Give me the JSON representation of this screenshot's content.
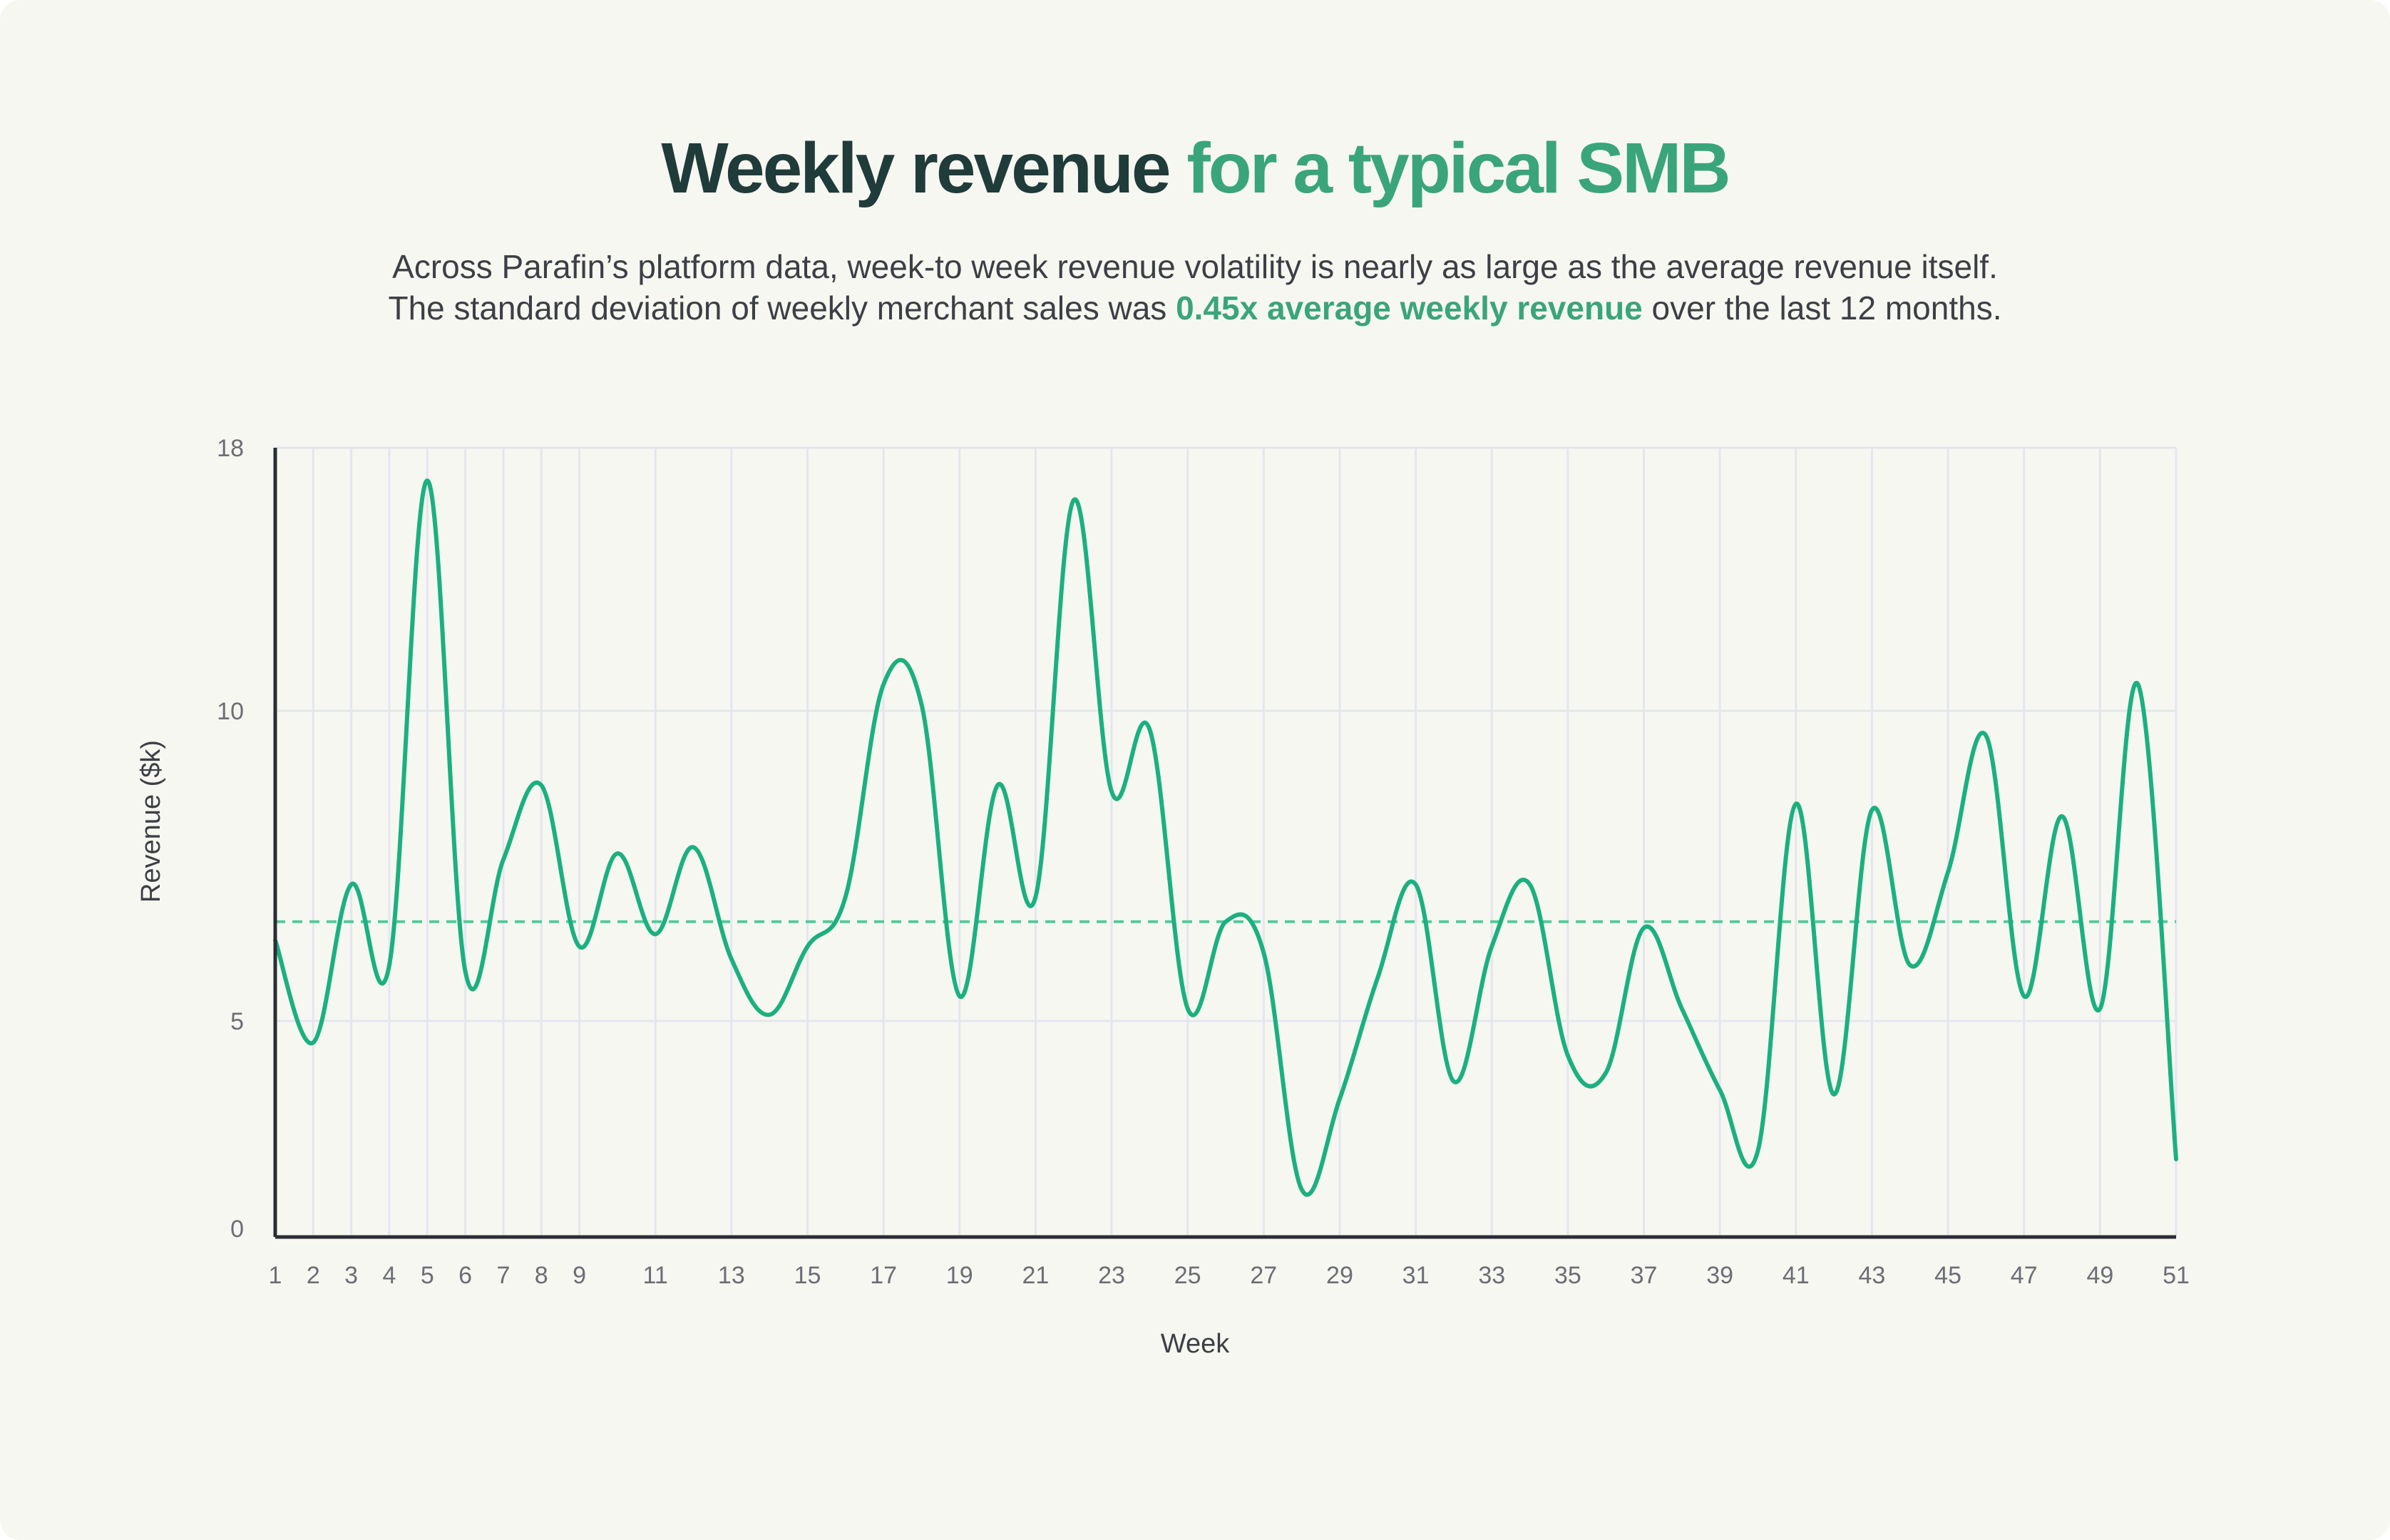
{
  "header": {
    "title_part1": "Weekly revenue",
    "title_part2": "for a typical SMB",
    "subtitle_line1": "Across Parafin’s platform data, week-to week revenue volatility is nearly as large as the average revenue itself.",
    "subtitle_line2_prefix": "The standard deviation of weekly merchant sales was ",
    "subtitle_line2_highlight": "0.45x average weekly revenue",
    "subtitle_line2_suffix": " over the last 12 months."
  },
  "colors": {
    "line": "#1bb07f",
    "average": "#55c99a",
    "grid": "#e4e6ee",
    "axis": "#2a2d34",
    "title_dark": "#1f3b3a",
    "title_green": "#3aa57a"
  },
  "chart_data": {
    "type": "line",
    "title": "Weekly revenue for a typical SMB",
    "xlabel": "Week",
    "ylabel": "Revenue ($k)",
    "y_ticks": [
      0,
      5,
      10,
      18
    ],
    "x_ticks": [
      1,
      2,
      3,
      4,
      5,
      6,
      7,
      8,
      9,
      11,
      13,
      15,
      17,
      19,
      21,
      23,
      25,
      27,
      29,
      31,
      33,
      35,
      37,
      39,
      41,
      43,
      45,
      47,
      49,
      51
    ],
    "xlim": [
      1,
      51
    ],
    "grid": true,
    "average_line": 6.6,
    "series": [
      {
        "name": "Weekly revenue",
        "x": [
          1,
          2,
          3,
          4,
          5,
          6,
          7,
          8,
          9,
          10,
          11,
          12,
          13,
          14,
          15,
          16,
          17,
          18,
          19,
          20,
          21,
          22,
          23,
          24,
          25,
          26,
          27,
          28,
          29,
          30,
          31,
          32,
          33,
          34,
          35,
          36,
          37,
          38,
          39,
          40,
          41,
          42,
          43,
          44,
          45,
          46,
          47,
          48,
          49,
          50,
          51
        ],
        "values": [
          6.3,
          4.5,
          7.2,
          5.9,
          17.0,
          5.8,
          7.6,
          8.8,
          6.2,
          7.7,
          6.4,
          7.8,
          6.0,
          5.1,
          6.2,
          7.0,
          10.8,
          10.2,
          5.4,
          8.8,
          7.0,
          16.4,
          8.7,
          9.7,
          5.2,
          6.6,
          6.1,
          1.1,
          3.2,
          5.7,
          7.2,
          3.6,
          6.2,
          7.2,
          4.2,
          3.8,
          6.5,
          5.2,
          3.4,
          2.0,
          8.5,
          3.3,
          8.4,
          5.9,
          7.4,
          9.6,
          5.4,
          8.3,
          5.2,
          10.8,
          1.8
        ]
      }
    ]
  }
}
